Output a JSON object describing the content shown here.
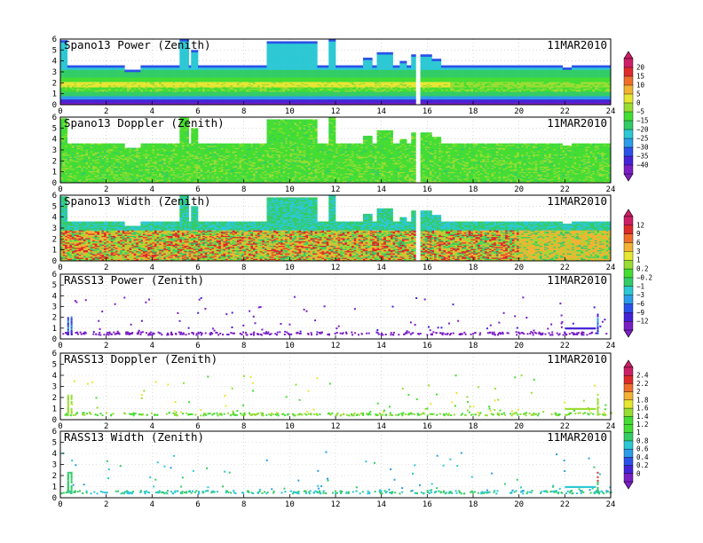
{
  "chart_data": [
    {
      "type": "heatmap",
      "title": "Spano13 Power (Zenith)",
      "date": "11MAR2010",
      "xlim": [
        0,
        24
      ],
      "ylim": [
        0,
        6
      ],
      "xticks": [
        0,
        2,
        4,
        6,
        8,
        10,
        12,
        14,
        16,
        18,
        20,
        22,
        24
      ],
      "yticks": [
        0,
        1,
        2,
        3,
        4,
        5,
        6
      ],
      "colorbar": {
        "group": 1,
        "ticks": [
          "20",
          "15",
          "10",
          "5",
          "0",
          "−5",
          "−15",
          "−20",
          "−25",
          "−30",
          "−35",
          "−40"
        ]
      }
    },
    {
      "type": "heatmap",
      "title": "Spano13 Doppler (Zenith)",
      "date": "11MAR2010",
      "xlim": [
        0,
        24
      ],
      "ylim": [
        0,
        6
      ],
      "xticks": [
        0,
        2,
        4,
        6,
        8,
        10,
        12,
        14,
        16,
        18,
        20,
        22,
        24
      ],
      "yticks": [
        0,
        1,
        2,
        3,
        4,
        5,
        6
      ]
    },
    {
      "type": "heatmap",
      "title": "Spano13 Width (Zenith)",
      "date": "11MAR2010",
      "xlim": [
        0,
        24
      ],
      "ylim": [
        0,
        6
      ],
      "xticks": [
        0,
        2,
        4,
        6,
        8,
        10,
        12,
        14,
        16,
        18,
        20,
        22,
        24
      ],
      "yticks": [
        0,
        1,
        2,
        3,
        4,
        5,
        6
      ],
      "colorbar": {
        "group": 2,
        "ticks": [
          "12",
          "9",
          "6",
          "3",
          "1",
          "0.2",
          "−0.2",
          "−1",
          "−3",
          "−6",
          "−9",
          "−12"
        ]
      }
    },
    {
      "type": "scatter",
      "title": "RASS13 Power (Zenith)",
      "date": "11MAR2010",
      "xlim": [
        0,
        24
      ],
      "ylim": [
        0,
        6
      ],
      "xticks": [
        0,
        2,
        4,
        6,
        8,
        10,
        12,
        14,
        16,
        18,
        20,
        22,
        24
      ],
      "yticks": [
        0,
        1,
        2,
        3,
        4,
        5,
        6
      ]
    },
    {
      "type": "scatter",
      "title": "RASS13 Doppler (Zenith)",
      "date": "11MAR2010",
      "xlim": [
        0,
        24
      ],
      "ylim": [
        0,
        6
      ],
      "xticks": [
        0,
        2,
        4,
        6,
        8,
        10,
        12,
        14,
        16,
        18,
        20,
        22,
        24
      ],
      "yticks": [
        0,
        1,
        2,
        3,
        4,
        5,
        6
      ],
      "colorbar": {
        "group": 3,
        "ticks": [
          "2.4",
          "2.2",
          "2",
          "1.8",
          "1.6",
          "1.4",
          "1.2",
          "1",
          "0.8",
          "0.6",
          "0.4",
          "0.2",
          "0"
        ]
      }
    },
    {
      "type": "scatter",
      "title": "RASS13 Width (Zenith)",
      "date": "11MAR2010",
      "xlim": [
        0,
        24
      ],
      "ylim": [
        0,
        6
      ],
      "xticks": [
        0,
        2,
        4,
        6,
        8,
        10,
        12,
        14,
        16,
        18,
        20,
        22,
        24
      ],
      "yticks": [
        0,
        1,
        2,
        3,
        4,
        5,
        6
      ]
    }
  ],
  "colors": {
    "ramp": [
      "#7a1fc4",
      "#4422d6",
      "#2a52e8",
      "#2c9ce8",
      "#2cc8d4",
      "#33cc66",
      "#44dd33",
      "#99dd33",
      "#e6e633",
      "#f2b233",
      "#ee6f2a",
      "#dd2a2a",
      "#cc1f66"
    ]
  }
}
